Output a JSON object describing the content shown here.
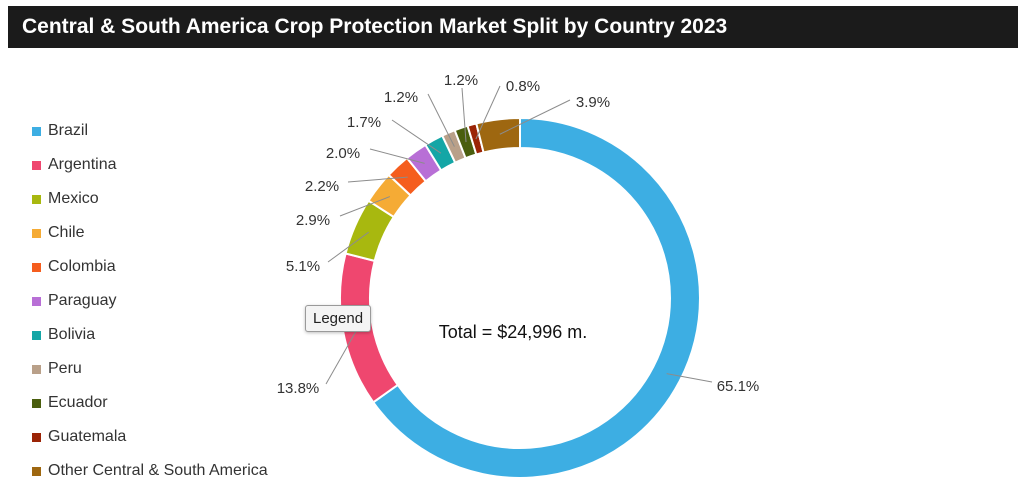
{
  "header": {
    "title": "Central & South America Crop Protection Market Split by Country 2023"
  },
  "tooltip": {
    "label": "Legend"
  },
  "chart_data": {
    "type": "donut",
    "title": "Central & South America Crop Protection Market Split by Country 2023",
    "center_label": "Total = $24,996 m.",
    "legend_position": "left",
    "series": [
      {
        "name": "Brazil",
        "value": 65.1,
        "label": "65.1%",
        "color": "#3daee3"
      },
      {
        "name": "Argentina",
        "value": 13.8,
        "label": "13.8%",
        "color": "#ef476f"
      },
      {
        "name": "Mexico",
        "value": 5.1,
        "label": "5.1%",
        "color": "#a8b80f"
      },
      {
        "name": "Chile",
        "value": 2.9,
        "label": "2.9%",
        "color": "#f5ab35"
      },
      {
        "name": "Colombia",
        "value": 2.2,
        "label": "2.2%",
        "color": "#f55d1e"
      },
      {
        "name": "Paraguay",
        "value": 2.0,
        "label": "2.0%",
        "color": "#b86fd6"
      },
      {
        "name": "Bolivia",
        "value": 1.7,
        "label": "1.7%",
        "color": "#14a6a6"
      },
      {
        "name": "Peru",
        "value": 1.2,
        "label": "1.2%",
        "color": "#b9a089"
      },
      {
        "name": "Ecuador",
        "value": 1.2,
        "label": "1.2%",
        "color": "#4a5e0e"
      },
      {
        "name": "Guatemala",
        "value": 0.8,
        "label": "0.8%",
        "color": "#9b2406"
      },
      {
        "name": "Other Central & South America",
        "value": 3.9,
        "label": "3.9%",
        "color": "#9e6710"
      }
    ]
  }
}
